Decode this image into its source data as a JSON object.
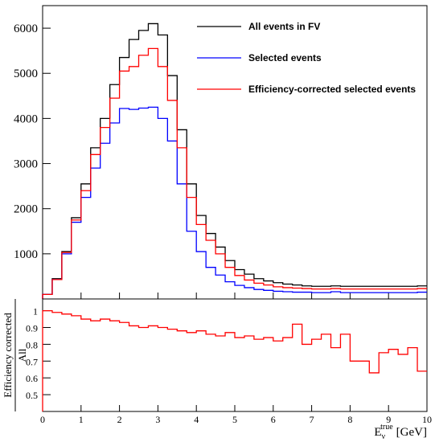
{
  "chart_data": [
    {
      "type": "line",
      "panel": "top",
      "step": true,
      "x_bin_edges": [
        0,
        0.25,
        0.5,
        0.75,
        1.0,
        1.25,
        1.5,
        1.75,
        2.0,
        2.25,
        2.5,
        2.75,
        3.0,
        3.25,
        3.5,
        3.75,
        4.0,
        4.25,
        4.5,
        4.75,
        5.0,
        5.25,
        5.5,
        5.75,
        6.0,
        6.25,
        6.5,
        6.75,
        7.0,
        7.25,
        7.5,
        7.75,
        8.0,
        8.25,
        8.5,
        8.75,
        9.0,
        9.25,
        9.5,
        9.75,
        10.0
      ],
      "ylim": [
        0,
        6500
      ],
      "y_ticks": [
        1000,
        2000,
        3000,
        4000,
        5000,
        6000
      ],
      "series": [
        {
          "name": "All events in FV",
          "color": "#000000",
          "values": [
            100,
            450,
            1050,
            1800,
            2550,
            3350,
            4000,
            4750,
            5350,
            5750,
            5950,
            6100,
            5850,
            4950,
            3750,
            2550,
            1850,
            1450,
            1150,
            850,
            650,
            550,
            450,
            400,
            360,
            330,
            310,
            290,
            280,
            280,
            290,
            280,
            280,
            280,
            280,
            280,
            280,
            280,
            280,
            290
          ]
        },
        {
          "name": "Selected events",
          "color": "#0000ff",
          "values": [
            100,
            430,
            1000,
            1700,
            2250,
            2900,
            3450,
            3900,
            4220,
            4200,
            4230,
            4250,
            4000,
            3500,
            2550,
            1500,
            1050,
            700,
            530,
            380,
            300,
            250,
            210,
            190,
            170,
            160,
            150,
            150,
            140,
            140,
            160,
            140,
            140,
            140,
            140,
            140,
            140,
            140,
            140,
            150
          ]
        },
        {
          "name": "Efficiency-corrected selected events",
          "color": "#ff0000",
          "values": [
            100,
            430,
            1030,
            1750,
            2400,
            3200,
            3800,
            4450,
            5050,
            5150,
            5400,
            5550,
            5150,
            4400,
            3350,
            2250,
            1650,
            1300,
            1000,
            700,
            520,
            420,
            350,
            310,
            270,
            250,
            240,
            230,
            220,
            220,
            230,
            220,
            220,
            220,
            220,
            220,
            220,
            220,
            220,
            230
          ]
        }
      ]
    },
    {
      "type": "line",
      "panel": "bottom",
      "step": true,
      "x_bin_edges": [
        0,
        0.25,
        0.5,
        0.75,
        1.0,
        1.25,
        1.5,
        1.75,
        2.0,
        2.25,
        2.5,
        2.75,
        3.0,
        3.25,
        3.5,
        3.75,
        4.0,
        4.25,
        4.5,
        4.75,
        5.0,
        5.25,
        5.5,
        5.75,
        6.0,
        6.25,
        6.5,
        6.75,
        7.0,
        7.25,
        7.5,
        7.75,
        8.0,
        8.25,
        8.5,
        8.75,
        9.0,
        9.25,
        9.5,
        9.75,
        10.0
      ],
      "xlim": [
        0,
        10
      ],
      "ylim": [
        0.4,
        1.07
      ],
      "x_ticks": [
        0,
        1,
        2,
        3,
        4,
        5,
        6,
        7,
        8,
        9,
        10
      ],
      "y_ticks": [
        0.5,
        0.6,
        0.7,
        0.8,
        0.9,
        1
      ],
      "series": [
        {
          "name": "",
          "color": "#ff0000",
          "values": [
            1.0,
            0.99,
            0.98,
            0.97,
            0.95,
            0.94,
            0.95,
            0.94,
            0.93,
            0.91,
            0.9,
            0.91,
            0.9,
            0.89,
            0.88,
            0.87,
            0.88,
            0.86,
            0.85,
            0.87,
            0.84,
            0.85,
            0.83,
            0.84,
            0.82,
            0.84,
            0.92,
            0.8,
            0.83,
            0.86,
            0.78,
            0.86,
            0.7,
            0.7,
            0.63,
            0.75,
            0.77,
            0.74,
            0.78,
            0.64
          ]
        }
      ]
    }
  ],
  "plot": {
    "legend": [
      {
        "label": "All events in FV",
        "color": "#000000"
      },
      {
        "label": "Selected events",
        "color": "#0000ff"
      },
      {
        "label": "Efficiency-corrected selected events",
        "color": "#ff0000"
      }
    ],
    "ratio_ylabel_num": "Efficiency corrected",
    "ratio_ylabel_den": "All",
    "xlabel_base": "E",
    "xlabel_sub": "ν",
    "xlabel_sup": "true",
    "xlabel_unit": "[GeV]"
  }
}
